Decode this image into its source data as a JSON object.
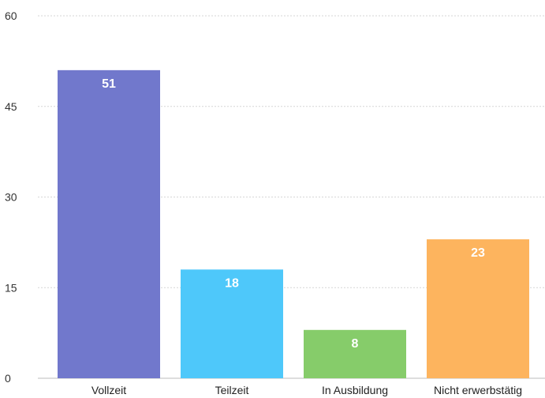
{
  "chart_data": {
    "type": "bar",
    "categories": [
      "Vollzeit",
      "Teilzeit",
      "In Ausbildung",
      "Nicht erwerbstätig"
    ],
    "values": [
      51,
      18,
      8,
      23
    ],
    "value_labels": [
      "51",
      "18",
      "8",
      "23"
    ],
    "colors": [
      "#7178cc",
      "#4ec8fa",
      "#86cc6a",
      "#fdb45e"
    ],
    "yticks": [
      "0",
      "15",
      "30",
      "45",
      "60"
    ],
    "ytick_values": [
      0,
      15,
      30,
      45,
      60
    ],
    "ylim": [
      0,
      60
    ],
    "grid": true,
    "legend": "none",
    "title": "",
    "xlabel": "",
    "ylabel": ""
  }
}
